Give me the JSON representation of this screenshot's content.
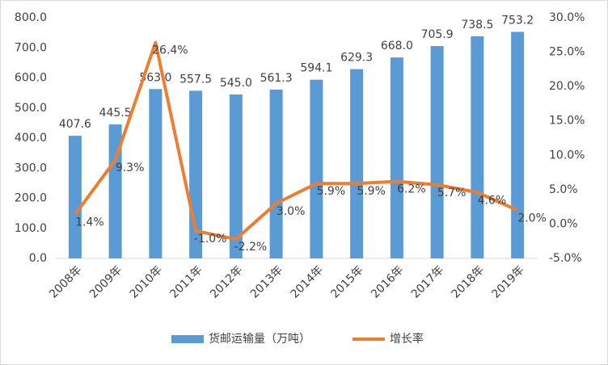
{
  "chart_data": {
    "type": "bar-line",
    "categories": [
      "2008年",
      "2009年",
      "2010年",
      "2011年",
      "2012年",
      "2013年",
      "2014年",
      "2015年",
      "2016年",
      "2017年",
      "2018年",
      "2019年"
    ],
    "series": [
      {
        "name": "货邮运输量（万吨）",
        "type": "bar",
        "color": "#5b9bd5",
        "axis": "y",
        "values": [
          407.6,
          445.5,
          563.0,
          557.5,
          545.0,
          561.3,
          594.1,
          629.3,
          668.0,
          705.9,
          738.5,
          753.2
        ],
        "value_labels": [
          "407.6",
          "445.5",
          "563.0",
          "557.5",
          "545.0",
          "561.3",
          "594.1",
          "629.3",
          "668.0",
          "705.9",
          "738.5",
          "753.2"
        ]
      },
      {
        "name": "增长率",
        "type": "line",
        "color": "#ed7d31",
        "axis": "y2",
        "values": [
          1.4,
          9.3,
          26.4,
          -1.0,
          -2.2,
          3.0,
          5.9,
          5.9,
          6.2,
          5.7,
          4.6,
          2.0
        ],
        "value_labels": [
          "1.4%",
          "9.3%",
          "26.4%",
          "-1.0%",
          "-2.2%",
          "3.0%",
          "5.9%",
          "5.9%",
          "6.2%",
          "5.7%",
          "4.6%",
          "2.0%"
        ]
      }
    ],
    "ylim": [
      0,
      800
    ],
    "yticks": [
      {
        "value": 0,
        "label": "0.0"
      },
      {
        "value": 100,
        "label": "100.0"
      },
      {
        "value": 200,
        "label": "200.0"
      },
      {
        "value": 300,
        "label": "300.0"
      },
      {
        "value": 400,
        "label": "400.0"
      },
      {
        "value": 500,
        "label": "500.0"
      },
      {
        "value": 600,
        "label": "600.0"
      },
      {
        "value": 700,
        "label": "700.0"
      },
      {
        "value": 800,
        "label": "800.0"
      }
    ],
    "y2lim": [
      -5,
      30
    ],
    "y2ticks": [
      {
        "value": -5,
        "label": "-5.0%"
      },
      {
        "value": 0,
        "label": "0.0%"
      },
      {
        "value": 5,
        "label": "5.0%"
      },
      {
        "value": 10,
        "label": "10.0%"
      },
      {
        "value": 15,
        "label": "15.0%"
      },
      {
        "value": 20,
        "label": "20.0%"
      },
      {
        "value": 25,
        "label": "25.0%"
      },
      {
        "value": 30,
        "label": "30.0%"
      }
    ],
    "grid": false
  }
}
